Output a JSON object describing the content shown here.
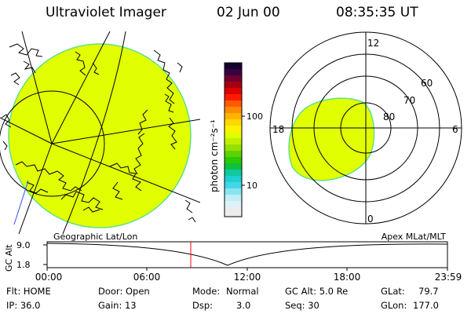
{
  "header": {
    "title": "Ultraviolet Imager",
    "date": "02 Jun 00",
    "time": "08:35:35 UT"
  },
  "colorbar": {
    "unit_label": "photon cm⁻²s⁻¹",
    "ticks": [
      "100",
      "10"
    ]
  },
  "polar": {
    "mlt_labels": [
      "12",
      "18",
      "6",
      "0"
    ],
    "lat_labels": [
      "60",
      "70",
      "80"
    ]
  },
  "orbit": {
    "left_label": "Geographic Lat/Lon",
    "right_label": "Apex MLat/MLT",
    "y_axis_label": "GC Alt",
    "y_ticks": [
      "9.0",
      "1.8"
    ],
    "time_ticks": [
      "00:00",
      "06:00",
      "12:00",
      "18:00",
      "23:59"
    ],
    "marker_time": "08:35:35"
  },
  "info": {
    "flt": "Flt: HOME",
    "door": "Door: Open",
    "mode_label": "Mode:",
    "mode_value": "Normal",
    "gc_alt": "GC Alt: 5.0 Re",
    "glat_label": "GLat:",
    "glat_value": "79.7",
    "ip": "IP: 36.0",
    "gain": "Gain: 13",
    "dsp_label": "Dsp:",
    "dsp_value": "3.0",
    "seq": "Seq: 30",
    "glon_label": "GLon:",
    "glon_value": "177.0"
  },
  "colors": {
    "emission": "#e1ff00",
    "emission_edge": "#5fe08a",
    "marker": "#ff0000"
  }
}
